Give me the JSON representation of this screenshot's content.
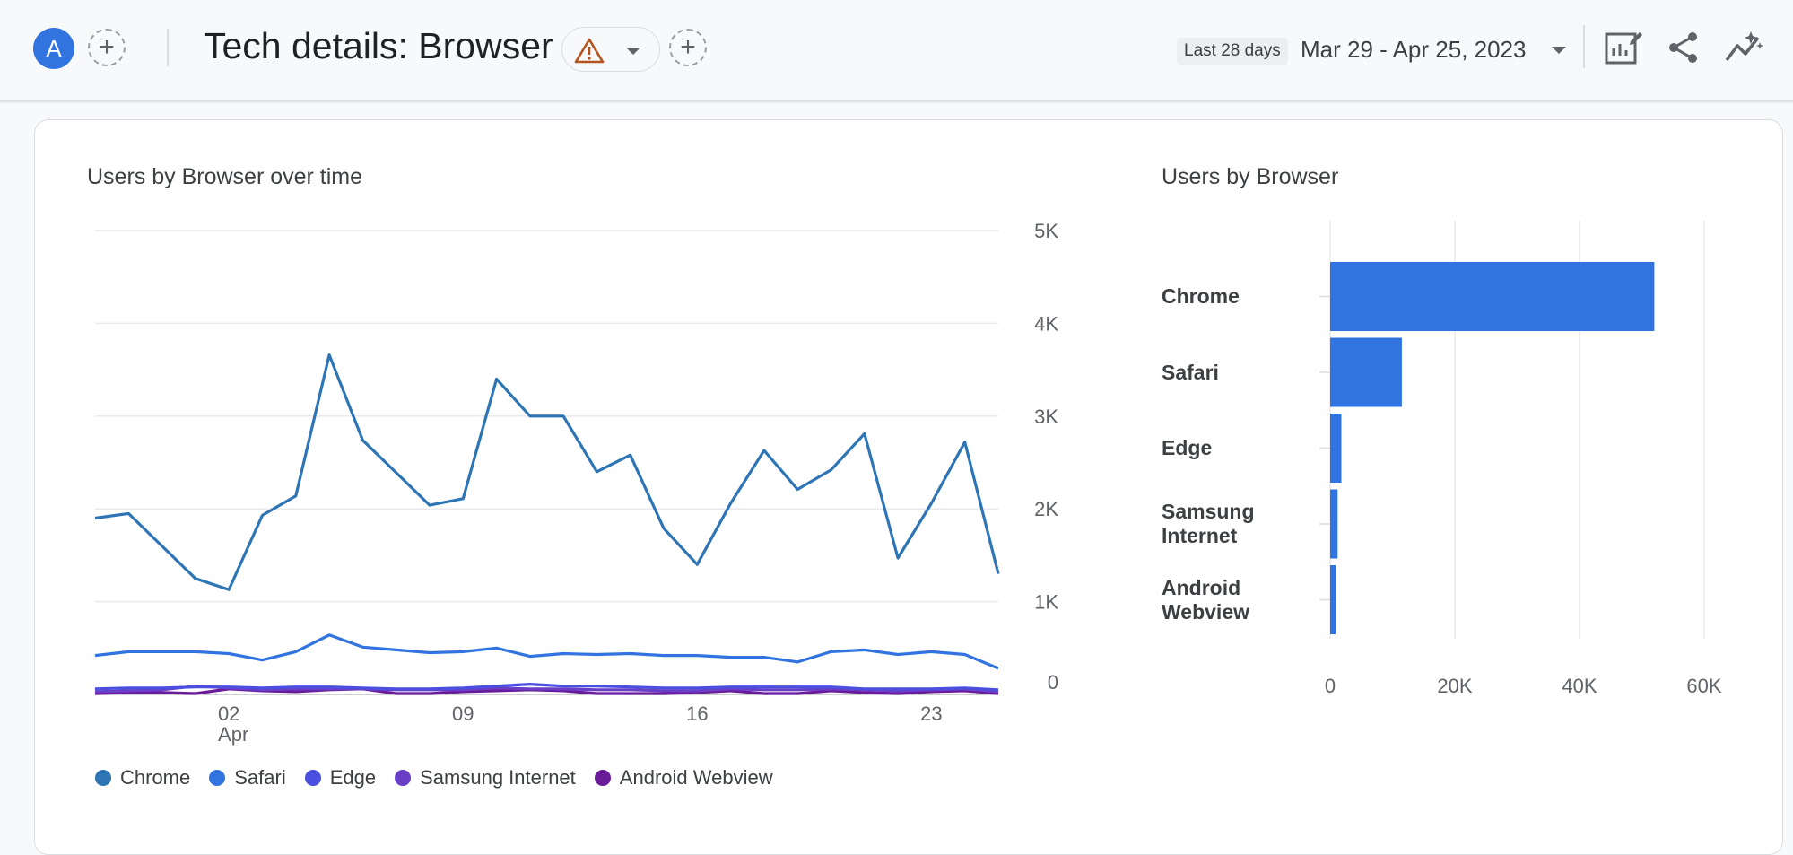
{
  "header": {
    "avatar_letter": "A",
    "title": "Tech details: Browser",
    "date_badge": "Last 28 days",
    "date_range": "Mar 29 - Apr 25, 2023"
  },
  "line_card": {
    "title": "Users by Browser over time"
  },
  "bar_card": {
    "title": "Users by Browser"
  },
  "legend": [
    {
      "label": "Chrome",
      "color": "#2e75b6"
    },
    {
      "label": "Safari",
      "color": "#3174e0"
    },
    {
      "label": "Edge",
      "color": "#4a4fe0"
    },
    {
      "label": "Samsung Internet",
      "color": "#6a3fc8"
    },
    {
      "label": "Android Webview",
      "color": "#6a1b9a"
    }
  ],
  "chart_data": [
    {
      "type": "line",
      "title": "Users by Browser over time",
      "x_tick_labels": [
        {
          "day": 5,
          "label": "02",
          "sub": "Apr"
        },
        {
          "day": 12,
          "label": "09",
          "sub": ""
        },
        {
          "day": 19,
          "label": "16",
          "sub": ""
        },
        {
          "day": 26,
          "label": "23",
          "sub": ""
        }
      ],
      "y_ticks": [
        "0",
        "1K",
        "2K",
        "3K",
        "4K",
        "5K"
      ],
      "ylim": [
        0,
        5000
      ],
      "x_dates": [
        "Mar 29",
        "Mar 30",
        "Mar 31",
        "Apr 01",
        "Apr 02",
        "Apr 03",
        "Apr 04",
        "Apr 05",
        "Apr 06",
        "Apr 07",
        "Apr 08",
        "Apr 09",
        "Apr 10",
        "Apr 11",
        "Apr 12",
        "Apr 13",
        "Apr 14",
        "Apr 15",
        "Apr 16",
        "Apr 17",
        "Apr 18",
        "Apr 19",
        "Apr 20",
        "Apr 21",
        "Apr 22",
        "Apr 23",
        "Apr 24",
        "Apr 25"
      ],
      "series": [
        {
          "name": "Chrome",
          "color": "#2e75b6",
          "values": [
            1900,
            1950,
            1600,
            1250,
            1130,
            1930,
            2140,
            3660,
            2740,
            2390,
            2040,
            2110,
            3400,
            3000,
            3000,
            2400,
            2580,
            1790,
            1400,
            2060,
            2630,
            2210,
            2420,
            2810,
            1470,
            2060,
            2720,
            1300
          ]
        },
        {
          "name": "Safari",
          "color": "#3174e0",
          "values": [
            420,
            460,
            460,
            460,
            440,
            370,
            460,
            640,
            510,
            480,
            450,
            460,
            500,
            410,
            440,
            430,
            440,
            420,
            420,
            400,
            400,
            350,
            460,
            480,
            430,
            460,
            430,
            280
          ]
        },
        {
          "name": "Edge",
          "color": "#4a4fe0",
          "values": [
            60,
            70,
            70,
            80,
            80,
            70,
            80,
            80,
            70,
            60,
            60,
            70,
            90,
            110,
            90,
            90,
            80,
            70,
            70,
            80,
            80,
            80,
            80,
            60,
            60,
            60,
            70,
            50
          ]
        },
        {
          "name": "Samsung Internet",
          "color": "#6a3fc8",
          "values": [
            30,
            40,
            50,
            90,
            70,
            50,
            60,
            60,
            60,
            50,
            50,
            50,
            70,
            60,
            60,
            50,
            50,
            40,
            40,
            60,
            50,
            50,
            60,
            50,
            40,
            50,
            60,
            30
          ]
        },
        {
          "name": "Android Webview",
          "color": "#6a1b9a",
          "values": [
            10,
            20,
            20,
            10,
            60,
            40,
            30,
            50,
            60,
            10,
            10,
            30,
            40,
            50,
            40,
            10,
            10,
            10,
            20,
            40,
            10,
            10,
            40,
            20,
            10,
            30,
            40,
            10
          ]
        }
      ]
    },
    {
      "type": "bar",
      "orientation": "horizontal",
      "title": "Users by Browser",
      "categories": [
        "Chrome",
        "Safari",
        "Edge",
        "Samsung\nInternet",
        "Android\nWebview"
      ],
      "values": [
        52000,
        11500,
        1800,
        1200,
        900
      ],
      "x_ticks": [
        "0",
        "20K",
        "40K",
        "60K"
      ],
      "xlim": [
        0,
        60000
      ],
      "color": "#3174e0"
    }
  ]
}
